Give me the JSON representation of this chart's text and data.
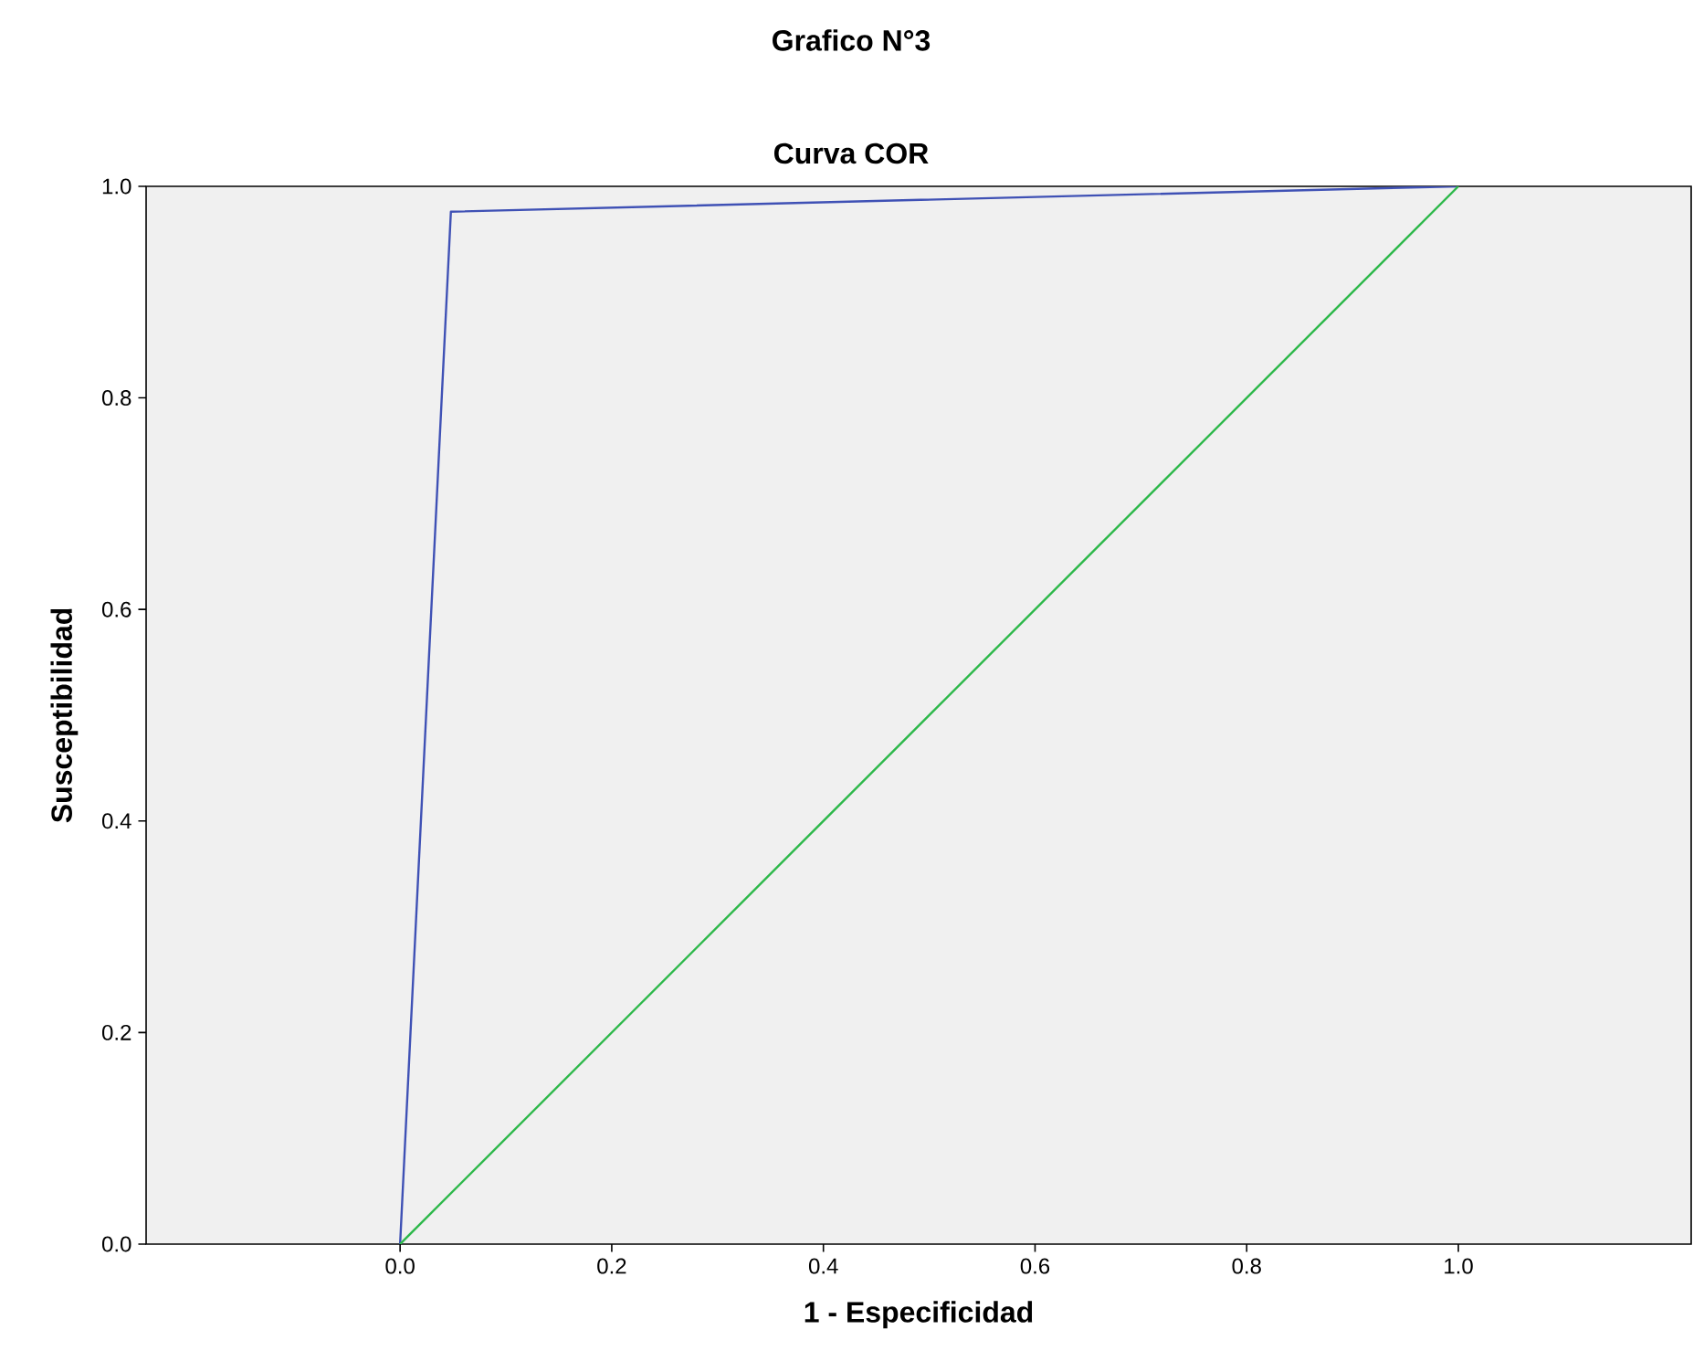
{
  "chart_data": {
    "type": "line",
    "title": "Grafico N°3",
    "subtitle": "Curva COR",
    "xlabel": "1 - Especificidad",
    "ylabel": "Susceptibilidad",
    "xlim": [
      -0.24,
      1.22
    ],
    "ylim": [
      0,
      1
    ],
    "xticks": [
      {
        "value": 0,
        "label": "0.0"
      },
      {
        "value": 0.2,
        "label": "0.2"
      },
      {
        "value": 0.4,
        "label": "0.4"
      },
      {
        "value": 0.6,
        "label": "0.6"
      },
      {
        "value": 0.8,
        "label": "0.8"
      },
      {
        "value": 1,
        "label": "1.0"
      }
    ],
    "yticks": [
      {
        "value": 0,
        "label": "0.0"
      },
      {
        "value": 0.2,
        "label": "0.2"
      },
      {
        "value": 0.4,
        "label": "0.4"
      },
      {
        "value": 0.6,
        "label": "0.6"
      },
      {
        "value": 0.8,
        "label": "0.8"
      },
      {
        "value": 1,
        "label": "1.0"
      }
    ],
    "series": [
      {
        "color": "#3f51b5",
        "x": [
          0,
          0.048,
          1
        ],
        "values": [
          0,
          0.976,
          1
        ]
      },
      {
        "color": "#2db84a",
        "x": [
          0,
          1
        ],
        "values": [
          0,
          1
        ]
      }
    ]
  }
}
